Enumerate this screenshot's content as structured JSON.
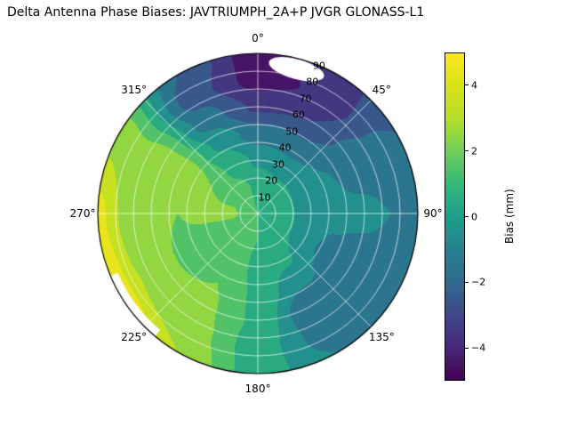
{
  "title": "Delta Antenna Phase Biases: JAVTRIUMPH_2A+P JVGR GLONASS-L1",
  "colorbar": {
    "label": "Bias (mm)",
    "range": [
      -5,
      5
    ],
    "ticks": [
      {
        "label": "4",
        "value": 4
      },
      {
        "label": "2",
        "value": 2
      },
      {
        "label": "0",
        "value": 0
      },
      {
        "label": "−2",
        "value": -2
      },
      {
        "label": "−4",
        "value": -4
      }
    ]
  },
  "chart_data": {
    "type": "heatmap",
    "projection": "polar",
    "title": "Delta Antenna Phase Biases: JAVTRIUMPH_2A+P JVGR GLONASS-L1",
    "colorbar_label": "Bias (mm)",
    "units": "mm",
    "value_range": [
      -5,
      5
    ],
    "contour_step": 1.0,
    "colormap": "viridis",
    "colormap_stops": [
      [
        0.0,
        "#440154"
      ],
      [
        0.1,
        "#482878"
      ],
      [
        0.2,
        "#3e4989"
      ],
      [
        0.3,
        "#31688e"
      ],
      [
        0.4,
        "#26828e"
      ],
      [
        0.5,
        "#1f9e89"
      ],
      [
        0.6,
        "#35b779"
      ],
      [
        0.7,
        "#6ece58"
      ],
      [
        0.8,
        "#b5de2b"
      ],
      [
        0.9,
        "#d8e219"
      ],
      [
        1.0,
        "#fde725"
      ]
    ],
    "azimuth_deg": [
      0,
      30,
      60,
      90,
      120,
      150,
      180,
      210,
      240,
      270,
      300,
      330
    ],
    "zenith_deg": [
      0,
      15,
      30,
      45,
      60,
      75,
      90
    ],
    "bias_mm": [
      [
        1.0,
        1.0,
        1.0,
        1.0,
        1.0,
        1.0,
        1.0,
        1.0,
        1.0,
        1.0,
        1.0,
        1.0
      ],
      [
        0.8,
        0.5,
        0.3,
        0.2,
        0.5,
        0.8,
        1.0,
        1.3,
        1.6,
        2.2,
        1.8,
        1.2
      ],
      [
        -0.2,
        -0.5,
        -0.5,
        -0.5,
        -0.8,
        0.2,
        0.8,
        1.5,
        1.5,
        2.2,
        2.0,
        0.8
      ],
      [
        -1.5,
        -1.8,
        -1.0,
        -0.8,
        -1.2,
        -0.8,
        0.8,
        2.0,
        1.8,
        2.0,
        2.5,
        -0.2
      ],
      [
        -3.2,
        -3.0,
        -1.5,
        -0.8,
        -1.5,
        -2.0,
        0.8,
        2.2,
        2.2,
        2.3,
        2.5,
        -1.5
      ],
      [
        -4.4,
        -3.8,
        -1.8,
        -1.0,
        -1.5,
        -1.5,
        0.5,
        2.5,
        3.0,
        2.8,
        2.2,
        -2.5
      ],
      [
        -4.6,
        -3.5,
        -2.0,
        -1.2,
        -1.8,
        -1.0,
        0.5,
        3.0,
        5.0,
        4.3,
        2.6,
        -2.0
      ]
    ],
    "azimuth_tick_labels": [
      {
        "label": "0°",
        "azimuth_deg": 0
      },
      {
        "label": "45°",
        "azimuth_deg": 45
      },
      {
        "label": "90°",
        "azimuth_deg": 90
      },
      {
        "label": "135°",
        "azimuth_deg": 135
      },
      {
        "label": "180°",
        "azimuth_deg": 180
      },
      {
        "label": "225°",
        "azimuth_deg": 225
      },
      {
        "label": "270°",
        "azimuth_deg": 270
      },
      {
        "label": "315°",
        "azimuth_deg": 315
      }
    ],
    "radial_tick_labels": [
      {
        "label": "10",
        "zenith_deg": 10
      },
      {
        "label": "20",
        "zenith_deg": 20
      },
      {
        "label": "30",
        "zenith_deg": 30
      },
      {
        "label": "40",
        "zenith_deg": 40
      },
      {
        "label": "50",
        "zenith_deg": 50
      },
      {
        "label": "60",
        "zenith_deg": 60
      },
      {
        "label": "70",
        "zenith_deg": 70
      },
      {
        "label": "80",
        "zenith_deg": 80
      },
      {
        "label": "90",
        "zenith_deg": 90
      }
    ],
    "radial_label_azimuth_deg": 22.5,
    "grid": {
      "zenith_rings_deg": [
        10,
        20,
        30,
        40,
        50,
        60,
        70,
        80
      ],
      "azimuth_spokes_step_deg": 45,
      "color": "#ffffff"
    },
    "masked_regions": [
      {
        "shape": "ellipse",
        "azimuth_deg": 15,
        "zenith_deg": 84,
        "half_width_deg": 8,
        "half_depth_deg": 2.8
      },
      {
        "shape": "annular_wedge",
        "az_start_deg": 220,
        "az_end_deg": 247,
        "zenith_inner_deg": 85.5,
        "zenith_outer_deg": 90
      }
    ]
  }
}
